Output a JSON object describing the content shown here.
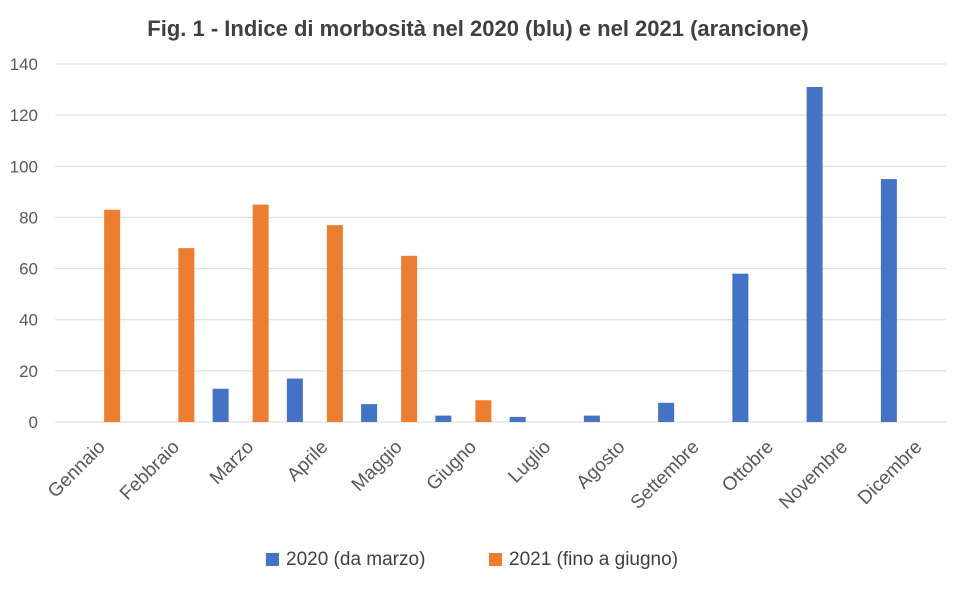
{
  "chart_data": {
    "type": "bar",
    "title": "Fig. 1 - Indice di morbosità nel 2020 (blu) e nel 2021 (arancione)",
    "xlabel": "",
    "ylabel": "",
    "ylim": [
      0,
      140
    ],
    "yticks": [
      0,
      20,
      40,
      60,
      80,
      100,
      120,
      140
    ],
    "ytick_labels": [
      "0",
      "20",
      "40",
      "60",
      "80",
      "100",
      "120",
      "140"
    ],
    "grid": true,
    "legend_position": "bottom",
    "categories": [
      "Gennaio",
      "Febbraio",
      "Marzo",
      "Aprile",
      "Maggio",
      "Giugno",
      "Luglio",
      "Agosto",
      "Settembre",
      "Ottobre",
      "Novembre",
      "Dicembre"
    ],
    "series": [
      {
        "name": "2020 (da marzo)",
        "color": "#4472c4",
        "values": [
          null,
          null,
          13,
          17,
          7,
          2.5,
          2,
          2.5,
          7.5,
          58,
          131,
          95
        ]
      },
      {
        "name": "2021 (fino a giugno)",
        "color": "#ed7d31",
        "values": [
          83,
          68,
          85,
          77,
          65,
          8.5,
          null,
          null,
          null,
          null,
          null,
          null
        ]
      }
    ]
  }
}
